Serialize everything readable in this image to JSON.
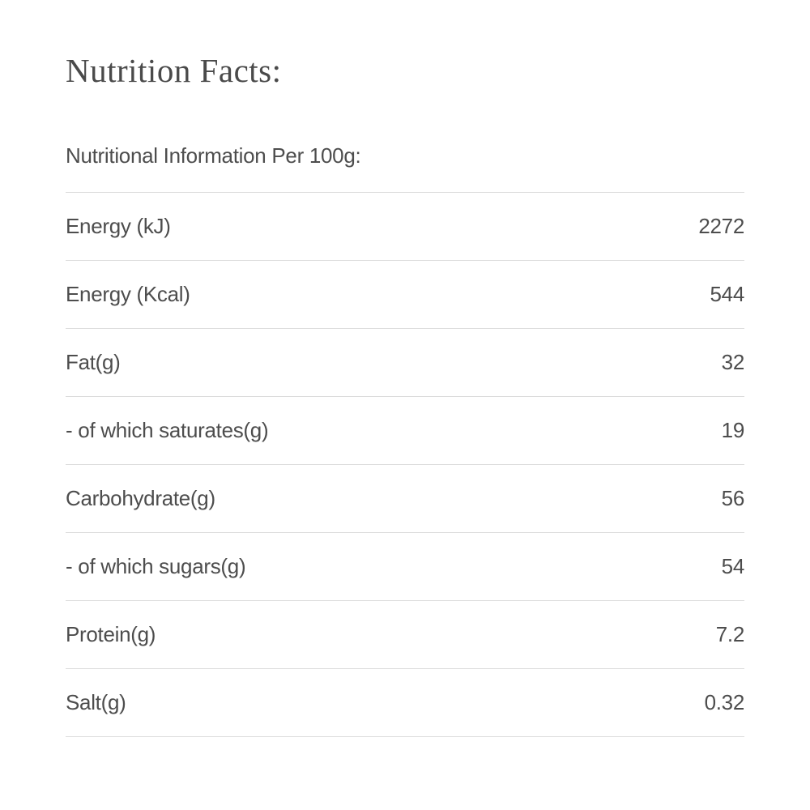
{
  "title": "Nutrition Facts:",
  "subtitle": "Nutritional Information Per 100g:",
  "rows": [
    {
      "label": "Energy (kJ)",
      "value": "2272"
    },
    {
      "label": "Energy (Kcal)",
      "value": "544"
    },
    {
      "label": "Fat(g)",
      "value": "32"
    },
    {
      "label": "- of which saturates(g)",
      "value": "19"
    },
    {
      "label": "Carbohydrate(g)",
      "value": "56"
    },
    {
      "label": "- of which sugars(g)",
      "value": "54"
    },
    {
      "label": "Protein(g)",
      "value": "7.2"
    },
    {
      "label": "Salt(g)",
      "value": "0.32"
    }
  ]
}
